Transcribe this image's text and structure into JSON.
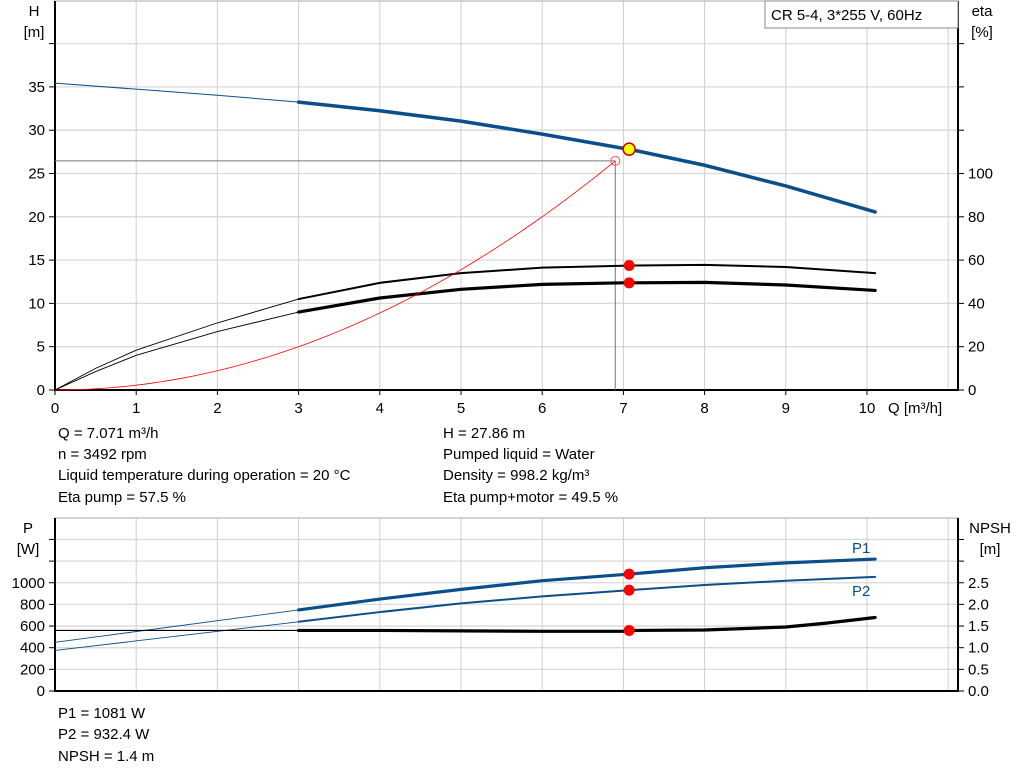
{
  "chart_data": [
    {
      "type": "line",
      "title": "CR 5-4, 3*255 V, 60Hz",
      "xlabel": "Q [m³/h]",
      "ylabel": "H\n[m]",
      "y2label": "eta\n[%]",
      "xlim": [
        0,
        11
      ],
      "ylim": [
        0,
        45
      ],
      "y2lim": [
        0,
        207
      ],
      "grid": true,
      "x_ticks": [
        "0",
        "1",
        "2",
        "3",
        "4",
        "5",
        "6",
        "7",
        "8",
        "9",
        "10"
      ],
      "y_ticks": [
        "0",
        "5",
        "10",
        "15",
        "20",
        "25",
        "30",
        "35"
      ],
      "y2_ticks": [
        "0",
        "20",
        "40",
        "60",
        "80",
        "100"
      ],
      "series": [
        {
          "axis": "left",
          "color": "#0b4f8a",
          "thin_until": 3,
          "x": [
            0,
            1,
            2,
            3,
            4,
            5,
            6,
            7,
            7.071,
            8,
            9,
            10.1
          ],
          "y": [
            35.5,
            34.8,
            34.1,
            33.3,
            32.3,
            31.1,
            29.6,
            27.95,
            27.86,
            26.0,
            23.6,
            20.6
          ]
        },
        {
          "axis": "right",
          "color": "#000000",
          "thin_until": 3,
          "x": [
            0,
            0.5,
            1,
            2,
            3,
            4,
            5,
            6,
            7,
            7.071,
            8,
            9,
            10.1
          ],
          "y": [
            0,
            10,
            18.4,
            31,
            42,
            49.5,
            54,
            56.5,
            57.4,
            57.5,
            57.8,
            56.8,
            54
          ]
        },
        {
          "axis": "right",
          "color": "#000000",
          "thin_until": 3,
          "bold": true,
          "x": [
            0,
            0.5,
            1,
            2,
            3,
            4,
            5,
            6,
            7,
            7.071,
            8,
            9,
            10.1
          ],
          "y": [
            0,
            8.5,
            16,
            27,
            36,
            42.5,
            46.5,
            48.8,
            49.5,
            49.5,
            49.7,
            48.5,
            46
          ]
        },
        {
          "axis": "left",
          "color": "#ff0000",
          "kind": "system-curve",
          "x": [
            0,
            1,
            2,
            3,
            4,
            5,
            6,
            6.9
          ],
          "y": [
            0,
            0.56,
            2.23,
            5.01,
            8.91,
            13.92,
            20.04,
            26.5
          ]
        }
      ],
      "operating_point": {
        "Q": 7.071,
        "H": 27.86,
        "eta_pump": 57.5,
        "eta_pump_motor": 49.5,
        "color": "#ffff00"
      },
      "reference_point": {
        "Q": 6.9,
        "H": 26.5
      }
    },
    {
      "type": "line",
      "ylabel": "P\n[W]",
      "y2label": "NPSH\n[m]",
      "xlim": [
        0,
        11
      ],
      "ylim": [
        0,
        1600
      ],
      "y2lim": [
        0,
        4.0
      ],
      "grid": true,
      "y_ticks": [
        "0",
        "200",
        "400",
        "600",
        "800",
        "1000"
      ],
      "y2_ticks": [
        "0.0",
        "0.5",
        "1.0",
        "1.5",
        "2.0",
        "2.5"
      ],
      "series": [
        {
          "name": "P1",
          "axis": "left",
          "color": "#0b4f8a",
          "thin_until": 3,
          "x": [
            0,
            3,
            4,
            5,
            6,
            7,
            7.071,
            8,
            9,
            10.1
          ],
          "y": [
            450,
            750,
            850,
            940,
            1020,
            1077,
            1081,
            1140,
            1185,
            1220
          ]
        },
        {
          "name": "P2",
          "axis": "left",
          "color": "#0b4f8a",
          "thin_until": 3,
          "x": [
            0,
            3,
            4,
            5,
            6,
            7,
            7.071,
            8,
            9,
            10.1
          ],
          "y": [
            375,
            640,
            730,
            810,
            875,
            928,
            932.4,
            980,
            1020,
            1055
          ]
        },
        {
          "axis": "right",
          "color": "#000000",
          "thin_until": 3,
          "x": [
            0,
            3,
            4,
            5,
            6,
            7,
            7.071,
            8,
            9,
            9.5,
            10.1
          ],
          "y": [
            1.4,
            1.4,
            1.4,
            1.39,
            1.38,
            1.38,
            1.4,
            1.41,
            1.48,
            1.57,
            1.7
          ]
        }
      ],
      "operating_point": {
        "Q": 7.071,
        "P1": 1081,
        "P2": 932.4,
        "NPSH": 1.4
      }
    }
  ],
  "info": {
    "left": [
      "Q = 7.071 m³/h",
      "n = 3492 rpm",
      "Liquid temperature during operation = 20 °C",
      "Eta pump = 57.5 %"
    ],
    "right": [
      "H = 27.86 m",
      "Pumped liquid = Water",
      "Density = 998.2 kg/m³",
      "Eta pump+motor = 49.5 %"
    ],
    "bottom": [
      "P1 = 1081 W",
      "P2 = 932.4 W",
      "NPSH = 1.4 m"
    ]
  }
}
